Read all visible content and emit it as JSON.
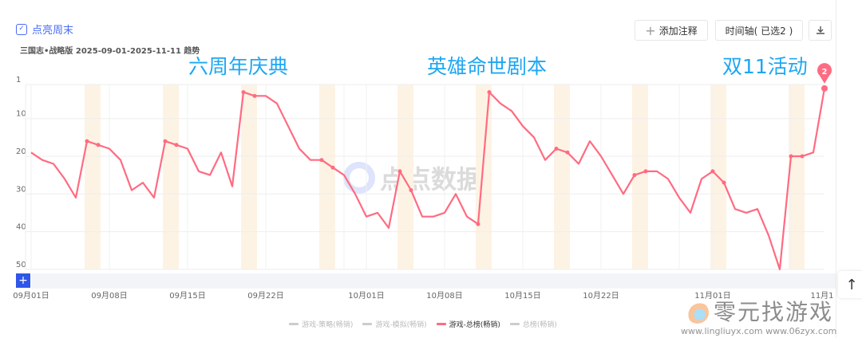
{
  "header": {
    "weekend_toggle": {
      "label": "点亮周末",
      "checked": true
    },
    "subtitle": "三国志•战略版 2025-09-01-2025-11-11 趋势",
    "add_note_label": "添加注释",
    "timeline_label": "时间轴( 已选2 )",
    "download_icon": "download-icon"
  },
  "annotations": [
    {
      "text": "六周年庆典",
      "date": "2025-09-20"
    },
    {
      "text": "英雄命世剧本",
      "date": "2025-10-12"
    },
    {
      "text": "双11活动",
      "date": "2025-11-11"
    }
  ],
  "marker": {
    "label": "2",
    "date": "2025-11-11",
    "color": "#ff6b81"
  },
  "watermarks": {
    "center": "点点数据",
    "brand": "零元找游戏",
    "url": "www.lingliuyx.com  www.06zyx.com"
  },
  "colors": {
    "line": "#ff6b81",
    "weekend": "#fdf3e4",
    "accent": "#4a6cf7",
    "annotation": "#1ea7f2"
  },
  "chart_data": {
    "type": "line",
    "title": "",
    "xlabel": "",
    "ylabel": "",
    "y_inverted": true,
    "ylim": [
      1,
      50
    ],
    "y_ticks": [
      1,
      10,
      20,
      30,
      40,
      50
    ],
    "x_start": "2025-09-01",
    "x_end": "2025-11-11",
    "x_tick_labels": [
      {
        "date": "2025-09-01",
        "label": "09月01日"
      },
      {
        "date": "2025-09-08",
        "label": "09月08日"
      },
      {
        "date": "2025-09-15",
        "label": "09月15日"
      },
      {
        "date": "2025-09-22",
        "label": "09月22日"
      },
      {
        "date": "2025-10-01",
        "label": "10月01日"
      },
      {
        "date": "2025-10-08",
        "label": "10月08日"
      },
      {
        "date": "2025-10-15",
        "label": "10月15日"
      },
      {
        "date": "2025-10-22",
        "label": "10月22日"
      },
      {
        "date": "2025-11-01",
        "label": "11月01日"
      },
      {
        "date": "2025-11-11",
        "label": "11月1"
      }
    ],
    "grid": true,
    "weekend_highlight": true,
    "legend_position": "bottom",
    "legend": [
      {
        "name": "游戏-策略(畅销)",
        "color": "#cccccc",
        "active": false
      },
      {
        "name": "游戏-模拟(畅销)",
        "color": "#cccccc",
        "active": false
      },
      {
        "name": "游戏-总榜(畅销)",
        "color": "#ff6b81",
        "active": true
      },
      {
        "name": "总榜(畅销)",
        "color": "#cccccc",
        "active": false
      }
    ],
    "series": [
      {
        "name": "游戏-总榜(畅销)",
        "color": "#ff6b81",
        "values": [
          19,
          21,
          22,
          26,
          31,
          16,
          17,
          18,
          21,
          29,
          27,
          31,
          16,
          17,
          18,
          24,
          25,
          19,
          28,
          3,
          4,
          4,
          6,
          12,
          18,
          21,
          21,
          23,
          25,
          30,
          36,
          35,
          39,
          24,
          29,
          36,
          36,
          35,
          30,
          36,
          38,
          3,
          6,
          8,
          12,
          15,
          21,
          18,
          19,
          22,
          16,
          20,
          25,
          30,
          25,
          24,
          24,
          26,
          31,
          35,
          26,
          24,
          27,
          34,
          35,
          34,
          41,
          50,
          20,
          20,
          19,
          2
        ]
      }
    ]
  }
}
